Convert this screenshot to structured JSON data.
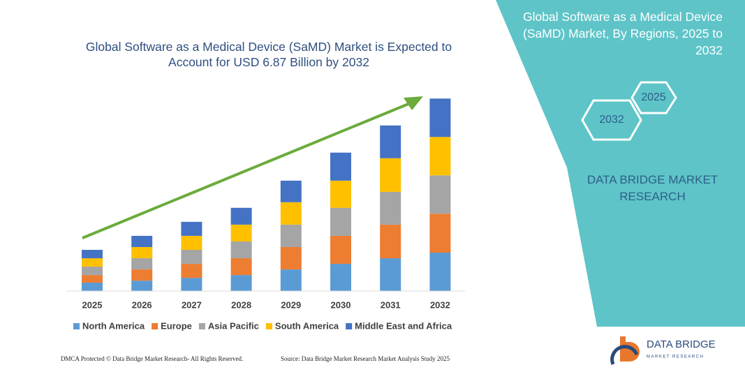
{
  "chart_data": {
    "type": "stacked_bar",
    "title": "Global Software as a Medical Device (SaMD) Market is Expected to Account for USD 6.87 Billion by 2032",
    "categories": [
      "2025",
      "2026",
      "2027",
      "2028",
      "2029",
      "2030",
      "2031",
      "2032"
    ],
    "series": [
      {
        "name": "North America",
        "color": "#5b9bd5",
        "values": [
          0.3,
          0.37,
          0.47,
          0.57,
          0.77,
          0.97,
          1.17,
          1.37
        ]
      },
      {
        "name": "Europe",
        "color": "#ed7d31",
        "values": [
          0.27,
          0.4,
          0.5,
          0.6,
          0.8,
          1.0,
          1.2,
          1.39
        ]
      },
      {
        "name": "Asia Pacific",
        "color": "#a5a5a5",
        "values": [
          0.3,
          0.4,
          0.5,
          0.6,
          0.8,
          1.0,
          1.17,
          1.37
        ]
      },
      {
        "name": "South America",
        "color": "#ffc000",
        "values": [
          0.3,
          0.4,
          0.5,
          0.6,
          0.8,
          0.97,
          1.2,
          1.37
        ]
      },
      {
        "name": "Middle East and Africa",
        "color": "#4472c4",
        "values": [
          0.3,
          0.4,
          0.5,
          0.6,
          0.77,
          1.0,
          1.17,
          1.37
        ]
      }
    ],
    "ylim": [
      0,
      7
    ]
  },
  "panel": {
    "title": "Global Software as a Medical Device (SaMD) Market, By Regions, 2025 to 2032",
    "hex_top": "2025",
    "hex_bottom": "2032",
    "brand": "DATA BRIDGE MARKET RESEARCH"
  },
  "footer": {
    "left": "DMCA Protected © Data Bridge Market Research- All Rights Reserved.",
    "right": "Source: Data Bridge Market Research Market Analysis Study 2025"
  },
  "logo": {
    "name": "DATA BRIDGE",
    "tagline": "MARKET RESEARCH"
  }
}
